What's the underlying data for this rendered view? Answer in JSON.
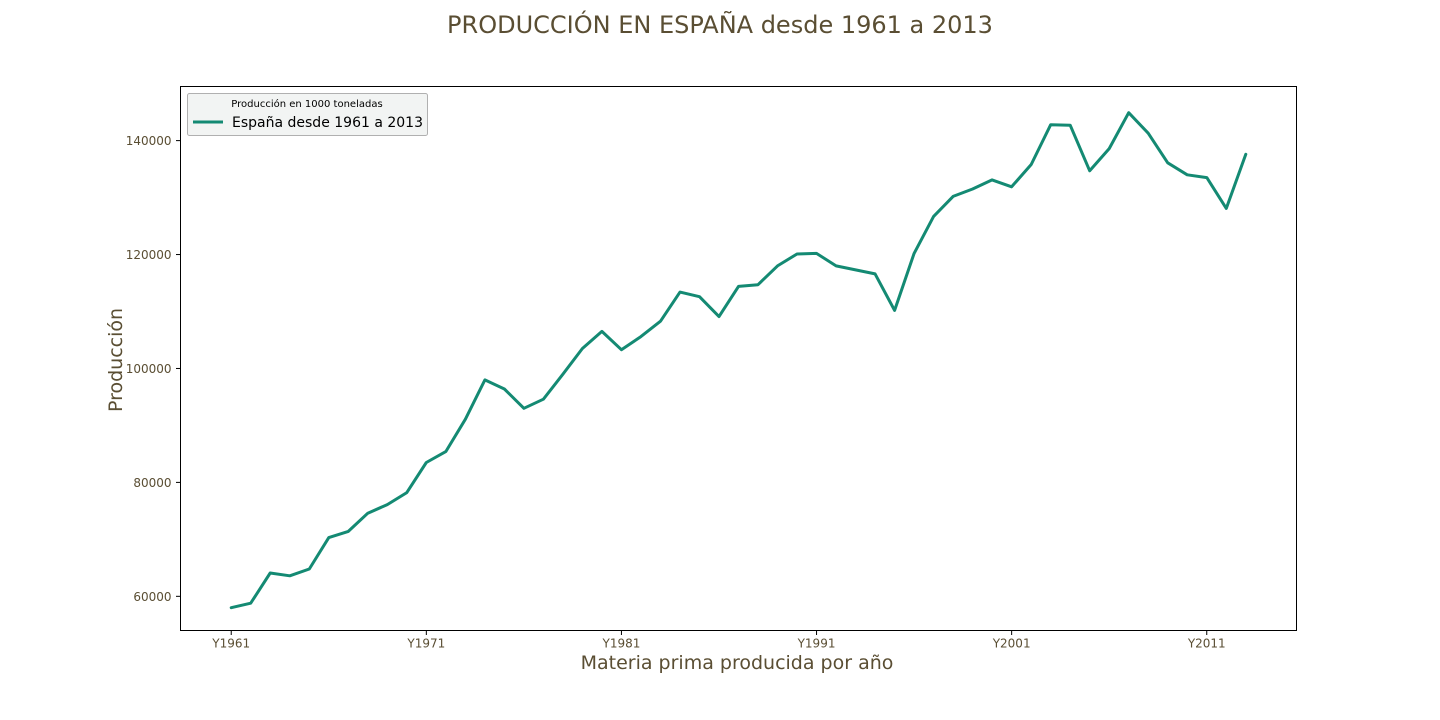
{
  "chart_data": {
    "type": "line",
    "title": "PRODUCCIÓN EN ESPAÑA desde 1961 a 2013",
    "xlabel": "Materia prima producida por año",
    "ylabel": "Producción",
    "x": [
      1961,
      1962,
      1963,
      1964,
      1965,
      1966,
      1967,
      1968,
      1969,
      1970,
      1971,
      1972,
      1973,
      1974,
      1975,
      1976,
      1977,
      1978,
      1979,
      1980,
      1981,
      1982,
      1983,
      1984,
      1985,
      1986,
      1987,
      1988,
      1989,
      1990,
      1991,
      1992,
      1993,
      1994,
      1995,
      1996,
      1997,
      1998,
      1999,
      2000,
      2001,
      2002,
      2003,
      2004,
      2005,
      2006,
      2007,
      2008,
      2009,
      2010,
      2011,
      2012,
      2013
    ],
    "xticks": [
      {
        "year": 1961,
        "label": "Y1961"
      },
      {
        "year": 1971,
        "label": "Y1971"
      },
      {
        "year": 1981,
        "label": "Y1981"
      },
      {
        "year": 1991,
        "label": "Y1991"
      },
      {
        "year": 2001,
        "label": "Y2001"
      },
      {
        "year": 2011,
        "label": "Y2011"
      }
    ],
    "yticks": [
      60000,
      80000,
      100000,
      120000,
      140000
    ],
    "xlim": [
      1958.4,
      2015.6
    ],
    "ylim": [
      54000,
      149500
    ],
    "series": [
      {
        "name": "España desde 1961 a 2013",
        "color": "#148a73",
        "values": [
          58000,
          58800,
          64100,
          63600,
          64800,
          70300,
          71400,
          74600,
          76100,
          78200,
          83500,
          85400,
          91100,
          98000,
          96400,
          93000,
          94600,
          99000,
          103500,
          106500,
          103300,
          105600,
          108300,
          113400,
          112600,
          109100,
          114400,
          114700,
          118000,
          120100,
          120200,
          118000,
          117300,
          116600,
          110200,
          120200,
          126700,
          130200,
          131500,
          133100,
          131900,
          135800,
          142800,
          142700,
          134700,
          138600,
          144900,
          141300,
          136100,
          134000,
          133500,
          128100,
          137600
        ]
      }
    ],
    "legend": {
      "title": "Producción en 1000 toneladas",
      "position": "top-left"
    },
    "grid": false
  }
}
